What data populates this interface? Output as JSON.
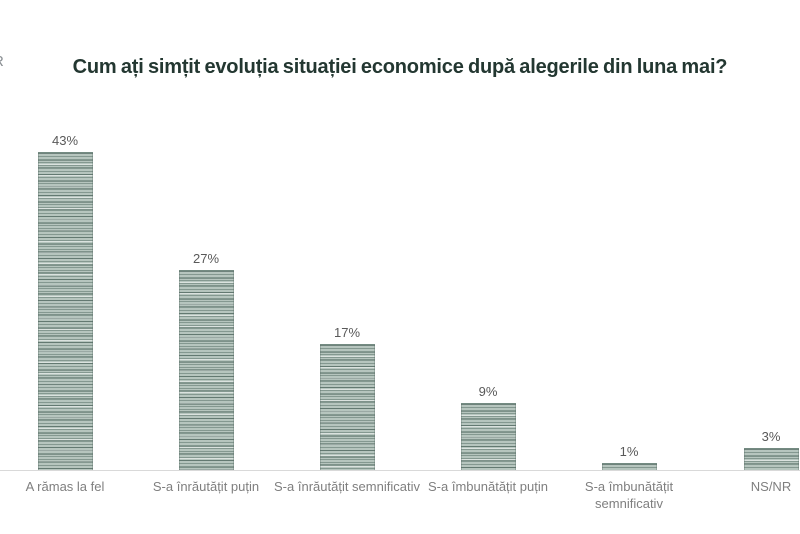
{
  "watermark": {
    "text": "R"
  },
  "chart_data": {
    "type": "bar",
    "title": "Cum ați simțit evoluția situației economice după alegerile din luna mai?",
    "categories": [
      "A rămas la fel",
      "S-a înrăutățit puțin",
      "S-a înrăutățit semnificativ",
      "S-a îmbunătățit puțin",
      "S-a îmbunătățit semnificativ",
      "NS/NR"
    ],
    "values": [
      43,
      27,
      17,
      9,
      1,
      3
    ],
    "value_labels": [
      "43%",
      "27%",
      "17%",
      "9%",
      "1%",
      "3%"
    ],
    "unit": "%",
    "xlabel": "",
    "ylabel": "",
    "ylim": [
      0,
      45
    ],
    "grid": false,
    "legend": "none",
    "colors": {
      "background": "#ffffff",
      "bar_base": "#b6c5be",
      "bar_stripe_dark": "#5f776e",
      "bar_edge": "#748b82",
      "axis_line": "#d9d9d9",
      "title": "#233731",
      "value_label": "#595959",
      "category_label": "#7f7f7f",
      "watermark": "#8b9094"
    }
  }
}
